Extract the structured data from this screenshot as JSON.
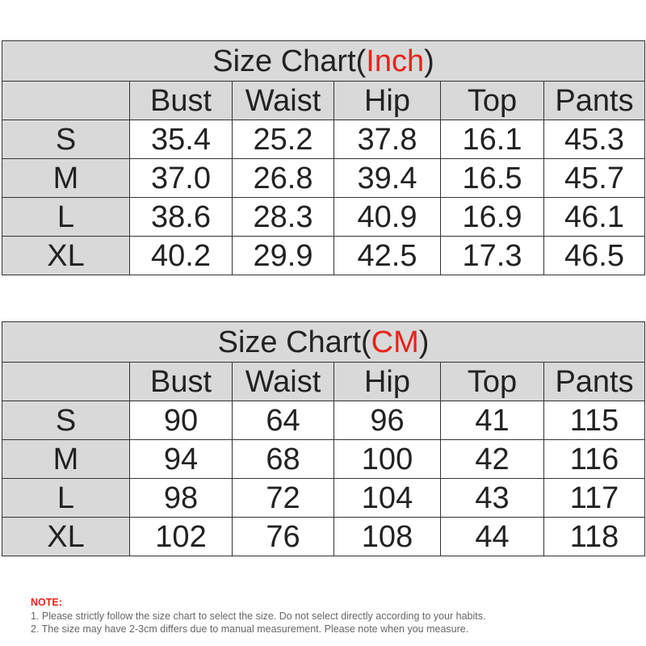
{
  "tables": [
    {
      "title": {
        "prefix": "Size Chart(",
        "unit": "Inch",
        "suffix": ")"
      },
      "columns": [
        "Bust",
        "Waist",
        "Hip",
        "Top",
        "Pants"
      ],
      "rows": [
        {
          "size": "S",
          "cells": [
            "35.4",
            "25.2",
            "37.8",
            "16.1",
            "45.3"
          ]
        },
        {
          "size": "M",
          "cells": [
            "37.0",
            "26.8",
            "39.4",
            "16.5",
            "45.7"
          ]
        },
        {
          "size": "L",
          "cells": [
            "38.6",
            "28.3",
            "40.9",
            "16.9",
            "46.1"
          ]
        },
        {
          "size": "XL",
          "cells": [
            "40.2",
            "29.9",
            "42.5",
            "17.3",
            "46.5"
          ]
        }
      ]
    },
    {
      "title": {
        "prefix": "Size Chart(",
        "unit": "CM",
        "suffix": ")"
      },
      "columns": [
        "Bust",
        "Waist",
        "Hip",
        "Top",
        "Pants"
      ],
      "rows": [
        {
          "size": "S",
          "cells": [
            "90",
            "64",
            "96",
            "41",
            "115"
          ]
        },
        {
          "size": "M",
          "cells": [
            "94",
            "68",
            "100",
            "42",
            "116"
          ]
        },
        {
          "size": "L",
          "cells": [
            "98",
            "72",
            "104",
            "43",
            "117"
          ]
        },
        {
          "size": "XL",
          "cells": [
            "102",
            "76",
            "108",
            "44",
            "118"
          ]
        }
      ]
    }
  ],
  "note": {
    "heading": "NOTE:",
    "lines": [
      "1. Please strictly follow the size chart  to select the size. Do not select directly according to your habits.",
      "2. The size may have 2-3cm differs due to manual measurement. Please note when you measure."
    ]
  }
}
